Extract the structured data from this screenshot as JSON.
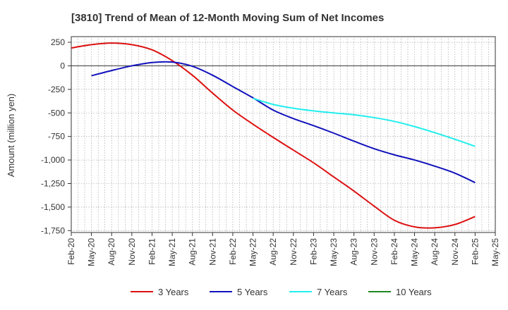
{
  "chart_data": {
    "type": "line",
    "title": "[3810]  Trend of Mean of 12-Month Moving Sum of Net Incomes",
    "xlabel": "",
    "ylabel": "Amount (million yen)",
    "ylim": [
      -1770,
      310
    ],
    "yticks": [
      250,
      0,
      -250,
      -500,
      -750,
      -1000,
      -1250,
      -1500,
      -1750
    ],
    "ytick_labels": [
      "250",
      "0",
      "-250",
      "-500",
      "-750",
      "-1,000",
      "-1,250",
      "-1,500",
      "-1,750"
    ],
    "xlim": [
      "2020-02",
      "2025-05"
    ],
    "xtick_labels": [
      "Feb-20",
      "May-20",
      "Aug-20",
      "Nov-20",
      "Feb-21",
      "May-21",
      "Aug-21",
      "Nov-21",
      "Feb-22",
      "May-22",
      "Aug-22",
      "Nov-22",
      "Feb-23",
      "May-23",
      "Aug-23",
      "Nov-23",
      "Feb-24",
      "May-24",
      "Aug-24",
      "Nov-24",
      "Feb-25",
      "May-25"
    ],
    "grid": true,
    "legend_position": "bottom",
    "series": [
      {
        "name": "3 Years",
        "color": "#dd1111",
        "points": [
          [
            "2020-02",
            190
          ],
          [
            "2020-05",
            225
          ],
          [
            "2020-08",
            242
          ],
          [
            "2020-11",
            225
          ],
          [
            "2021-02",
            170
          ],
          [
            "2021-05",
            55
          ],
          [
            "2021-08",
            -100
          ],
          [
            "2021-11",
            -290
          ],
          [
            "2022-02",
            -470
          ],
          [
            "2022-05",
            -620
          ],
          [
            "2022-08",
            -760
          ],
          [
            "2022-11",
            -895
          ],
          [
            "2023-02",
            -1030
          ],
          [
            "2023-05",
            -1180
          ],
          [
            "2023-08",
            -1330
          ],
          [
            "2023-11",
            -1490
          ],
          [
            "2024-02",
            -1640
          ],
          [
            "2024-05",
            -1710
          ],
          [
            "2024-08",
            -1720
          ],
          [
            "2024-11",
            -1685
          ],
          [
            "2025-02",
            -1600
          ]
        ]
      },
      {
        "name": "5 Years",
        "color": "#1111bb",
        "points": [
          [
            "2020-05",
            -105
          ],
          [
            "2020-08",
            -50
          ],
          [
            "2020-11",
            0
          ],
          [
            "2021-02",
            35
          ],
          [
            "2021-05",
            40
          ],
          [
            "2021-08",
            -5
          ],
          [
            "2021-11",
            -100
          ],
          [
            "2022-02",
            -220
          ],
          [
            "2022-05",
            -340
          ],
          [
            "2022-08",
            -470
          ],
          [
            "2022-11",
            -560
          ],
          [
            "2023-02",
            -635
          ],
          [
            "2023-05",
            -715
          ],
          [
            "2023-08",
            -800
          ],
          [
            "2023-11",
            -880
          ],
          [
            "2024-02",
            -945
          ],
          [
            "2024-05",
            -1000
          ],
          [
            "2024-08",
            -1065
          ],
          [
            "2024-11",
            -1140
          ],
          [
            "2025-02",
            -1240
          ]
        ]
      },
      {
        "name": "7 Years",
        "color": "#22eeee",
        "points": [
          [
            "2022-05",
            -345
          ],
          [
            "2022-08",
            -410
          ],
          [
            "2022-11",
            -450
          ],
          [
            "2023-02",
            -478
          ],
          [
            "2023-05",
            -500
          ],
          [
            "2023-08",
            -520
          ],
          [
            "2023-11",
            -550
          ],
          [
            "2024-02",
            -590
          ],
          [
            "2024-05",
            -645
          ],
          [
            "2024-08",
            -710
          ],
          [
            "2024-11",
            -780
          ],
          [
            "2025-02",
            -855
          ]
        ]
      },
      {
        "name": "10 Years",
        "color": "#228822",
        "points": []
      }
    ]
  }
}
